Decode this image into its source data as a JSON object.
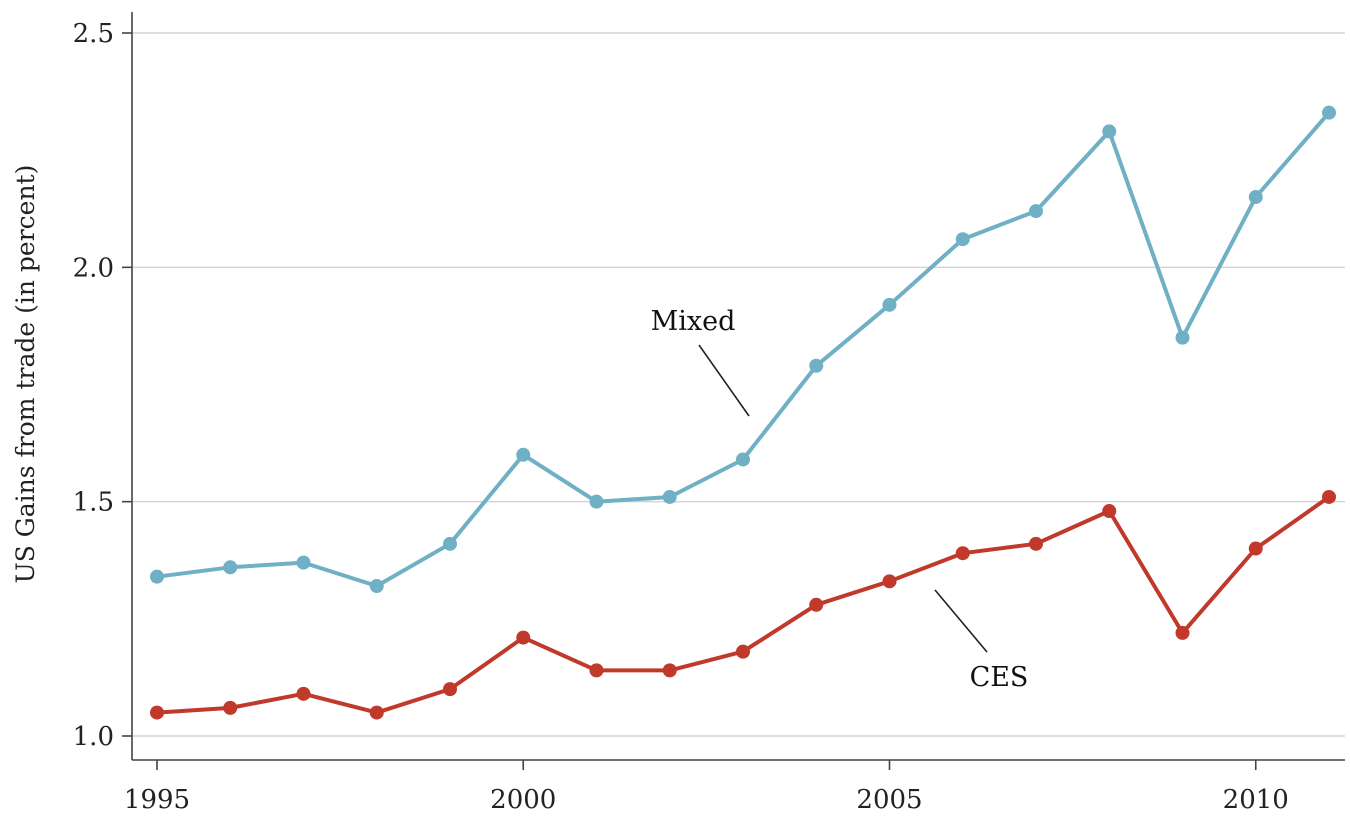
{
  "chart_data": {
    "type": "line",
    "title": "",
    "xlabel": "",
    "ylabel": "US Gains from trade (in percent)",
    "x": [
      1995,
      1996,
      1997,
      1998,
      1999,
      2000,
      2001,
      2002,
      2003,
      2004,
      2005,
      2006,
      2007,
      2008,
      2009,
      2010,
      2011
    ],
    "xlim": [
      1995,
      2011
    ],
    "ylim": [
      1.0,
      2.5
    ],
    "xticks": [
      "1995",
      "2000",
      "2005",
      "2010"
    ],
    "yticks": [
      "1.0",
      "1.5",
      "2.0",
      "2.5"
    ],
    "grid": "horizontal",
    "series": [
      {
        "name": "Mixed",
        "color": "#6fb0c5",
        "values": [
          1.34,
          1.36,
          1.37,
          1.32,
          1.41,
          1.6,
          1.5,
          1.51,
          1.59,
          1.79,
          1.92,
          2.06,
          2.12,
          2.29,
          1.85,
          2.15,
          2.33
        ]
      },
      {
        "name": "CES",
        "color": "#c0392b",
        "values": [
          1.05,
          1.06,
          1.09,
          1.05,
          1.1,
          1.21,
          1.14,
          1.14,
          1.18,
          1.28,
          1.33,
          1.39,
          1.41,
          1.48,
          1.22,
          1.4,
          1.51
        ]
      }
    ],
    "annotations": [
      {
        "text": "Mixed",
        "series": "Mixed"
      },
      {
        "text": "CES",
        "series": "CES"
      }
    ]
  }
}
